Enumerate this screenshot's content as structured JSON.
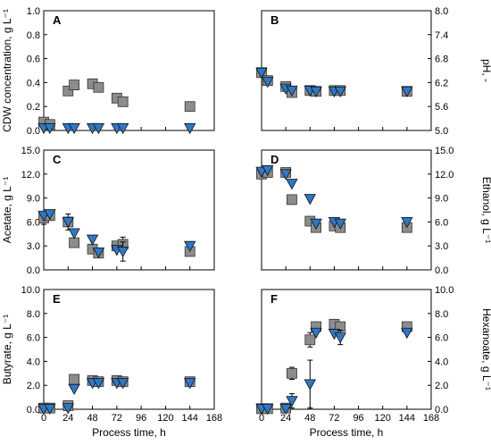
{
  "figure": {
    "marker_colors": {
      "square": "#8c8c8c",
      "triangle": "#2e78c4"
    }
  },
  "chart_data": [
    {
      "type": "scatter",
      "panel": "A",
      "ylabel": "CDW concentration, g L⁻¹",
      "ylim": [
        0.0,
        1.0
      ],
      "yticks": [
        "0.0",
        "0.2",
        "0.4",
        "0.6",
        "0.8",
        "1.0"
      ],
      "xlim": [
        0,
        168
      ],
      "xticks": [],
      "xlabel": "",
      "series": [
        {
          "marker": "square",
          "x": [
            0,
            6,
            24,
            30,
            48,
            54,
            72,
            78,
            144
          ],
          "y": [
            0.07,
            0.05,
            0.33,
            0.38,
            0.39,
            0.36,
            0.27,
            0.24,
            0.2
          ]
        },
        {
          "marker": "triangle",
          "x": [
            0,
            6,
            24,
            30,
            48,
            54,
            72,
            78,
            144
          ],
          "y": [
            0.02,
            0.02,
            0.02,
            0.02,
            0.02,
            0.02,
            0.02,
            0.02,
            0.02
          ]
        }
      ]
    },
    {
      "type": "scatter",
      "panel": "B",
      "ylabel": "pH, -",
      "ylim": [
        5.0,
        8.0
      ],
      "yticks": [
        "5.0",
        "5.6",
        "6.2",
        "6.8",
        "7.4",
        "8.0"
      ],
      "xlim": [
        0,
        168
      ],
      "xticks": [],
      "xlabel": "",
      "series": [
        {
          "marker": "square",
          "x": [
            0,
            6,
            24,
            30,
            48,
            54,
            72,
            78,
            144
          ],
          "y": [
            6.45,
            6.25,
            6.1,
            5.95,
            6.0,
            5.98,
            6.0,
            6.0,
            5.98
          ]
        },
        {
          "marker": "triangle",
          "x": [
            0,
            6,
            24,
            30,
            48,
            54,
            72,
            78,
            144
          ],
          "y": [
            6.45,
            6.22,
            6.05,
            6.0,
            6.0,
            5.98,
            5.98,
            5.98,
            5.98
          ]
        }
      ]
    },
    {
      "type": "scatter",
      "panel": "C",
      "ylabel": "Acetate, g L⁻¹",
      "ylim": [
        0.0,
        15.0
      ],
      "yticks": [
        "0.0",
        "3.0",
        "6.0",
        "9.0",
        "12.0",
        "15.0"
      ],
      "xlim": [
        0,
        168
      ],
      "xticks": [],
      "xlabel": "",
      "series": [
        {
          "marker": "square",
          "x": [
            0,
            6,
            24,
            30,
            48,
            54,
            72,
            78,
            144
          ],
          "y": [
            6.5,
            6.8,
            6.0,
            3.4,
            2.6,
            2.1,
            3.0,
            3.2,
            2.3
          ],
          "err": [
            0.8,
            0.6,
            1.0,
            0,
            0,
            0,
            0.5,
            0.9,
            0
          ]
        },
        {
          "marker": "triangle",
          "x": [
            0,
            6,
            24,
            30,
            48,
            54,
            72,
            78,
            144
          ],
          "y": [
            6.8,
            7.0,
            6.0,
            4.6,
            3.8,
            2.2,
            2.5,
            2.3,
            3.0
          ],
          "err": [
            0,
            0,
            0,
            0,
            0,
            0,
            0,
            1.2,
            0
          ]
        }
      ]
    },
    {
      "type": "scatter",
      "panel": "D",
      "ylabel": "Ethanol, g L⁻¹",
      "ylim": [
        0.0,
        15.0
      ],
      "yticks": [
        "0.0",
        "3.0",
        "6.0",
        "9.0",
        "12.0",
        "15.0"
      ],
      "xlim": [
        0,
        168
      ],
      "xticks": [],
      "xlabel": "",
      "series": [
        {
          "marker": "square",
          "x": [
            0,
            6,
            24,
            30,
            48,
            54,
            72,
            78,
            144
          ],
          "y": [
            12.0,
            12.2,
            12.2,
            8.8,
            6.1,
            5.3,
            5.5,
            5.3,
            5.3
          ]
        },
        {
          "marker": "triangle",
          "x": [
            0,
            6,
            24,
            30,
            48,
            54,
            72,
            78,
            144
          ],
          "y": [
            12.3,
            12.5,
            12.0,
            10.8,
            8.9,
            5.8,
            6.0,
            5.8,
            6.0
          ]
        }
      ]
    },
    {
      "type": "scatter",
      "panel": "E",
      "ylabel": "Butyrate, g L⁻¹",
      "ylim": [
        0.0,
        10.0
      ],
      "yticks": [
        "0.0",
        "2.0",
        "4.0",
        "6.0",
        "8.0",
        "10.0"
      ],
      "xlim": [
        0,
        168
      ],
      "xticks": [
        "0",
        "24",
        "48",
        "72",
        "96",
        "120",
        "144",
        "168"
      ],
      "xlabel": "Process time, h",
      "series": [
        {
          "marker": "square",
          "x": [
            0,
            6,
            24,
            30,
            48,
            54,
            72,
            78,
            144
          ],
          "y": [
            0.1,
            0.1,
            0.3,
            2.5,
            2.4,
            2.3,
            2.4,
            2.3,
            2.3
          ]
        },
        {
          "marker": "triangle",
          "x": [
            0,
            6,
            24,
            30,
            48,
            54,
            72,
            78,
            144
          ],
          "y": [
            0.05,
            0.05,
            0.1,
            1.7,
            2.2,
            2.2,
            2.2,
            2.2,
            2.2
          ]
        }
      ]
    },
    {
      "type": "scatter",
      "panel": "F",
      "ylabel": "Hexanoate, g L⁻¹",
      "ylim": [
        0.0,
        10.0
      ],
      "yticks": [
        "0.0",
        "2.0",
        "4.0",
        "6.0",
        "8.0",
        "10.0"
      ],
      "xlim": [
        0,
        168
      ],
      "xticks": [
        "0",
        "24",
        "48",
        "72",
        "96",
        "120",
        "144",
        "168"
      ],
      "xlabel": "Process time, h",
      "series": [
        {
          "marker": "square",
          "x": [
            0,
            6,
            24,
            30,
            48,
            54,
            72,
            78,
            144
          ],
          "y": [
            0.05,
            0.05,
            0.1,
            3.0,
            5.8,
            6.9,
            7.1,
            6.9,
            6.9
          ],
          "err": [
            0,
            0,
            0,
            0.5,
            0.6,
            0,
            0,
            0,
            0
          ]
        },
        {
          "marker": "triangle",
          "x": [
            0,
            6,
            24,
            30,
            48,
            54,
            72,
            78,
            144
          ],
          "y": [
            0.05,
            0.05,
            0.05,
            0.7,
            2.1,
            6.4,
            6.3,
            6.0,
            6.4
          ],
          "err": [
            0,
            0,
            0,
            0.6,
            2.0,
            0,
            0,
            0.6,
            0
          ]
        }
      ]
    }
  ]
}
